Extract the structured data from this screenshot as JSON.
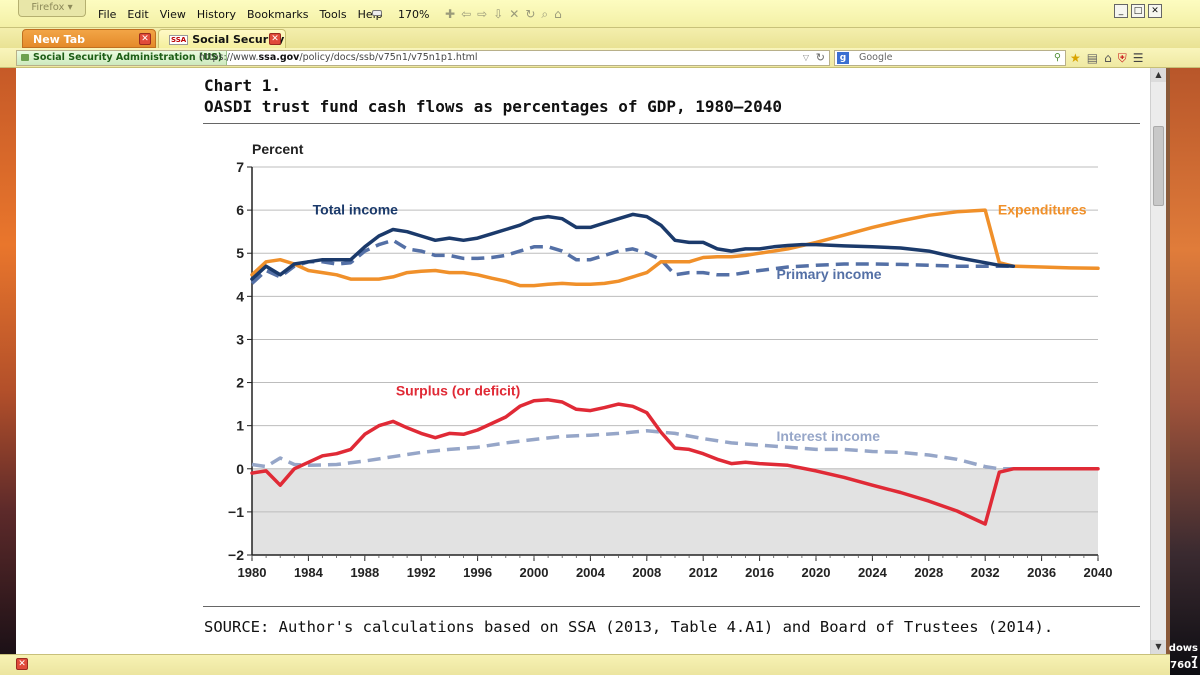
{
  "browser": {
    "app_name": "Firefox",
    "menu": [
      "File",
      "Edit",
      "View",
      "History",
      "Bookmarks",
      "Tools",
      "Help"
    ],
    "zoom": "170%",
    "tabs": [
      {
        "label": "New Tab",
        "active": false
      },
      {
        "label": "Social Security ...",
        "active": true,
        "favicon": "SSA"
      }
    ],
    "identity": "Social Security Administration (US)",
    "url_prefix": "https://www.",
    "url_domain": "ssa.gov",
    "url_path": "/policy/docs/ssb/v75n1/v75n1p1.html",
    "search_placeholder": "Google",
    "search_engine_letter": "g"
  },
  "page": {
    "chart_number": "Chart 1.",
    "chart_title": "OASDI trust fund cash flows as percentages of GDP, 1980–2040",
    "source": "SOURCE: Author's calculations based on SSA (2013, Table 4.A1) and Board of Trustees (2014)."
  },
  "os": {
    "line1": "dows 7",
    "line2": "7601"
  },
  "colors": {
    "total_income": "#1b3a6b",
    "primary_income": "#5470a6",
    "expenditures": "#f0902a",
    "surplus": "#e02a36",
    "interest_income": "#96a6c8",
    "negative_band": "#e2e2e2"
  },
  "chart_data": {
    "type": "line",
    "title": "",
    "ylabel": "Percent",
    "xlabel": "",
    "ylim": [
      -2,
      7
    ],
    "xlim": [
      1980,
      2040
    ],
    "yticks": [
      -2,
      -1,
      0,
      1,
      2,
      3,
      4,
      5,
      6,
      7
    ],
    "ytick_labels": [
      "−2",
      "−1",
      "0",
      "1",
      "2",
      "3",
      "4",
      "5",
      "6",
      "7"
    ],
    "xticks": [
      1980,
      1984,
      1988,
      1992,
      1996,
      2000,
      2004,
      2008,
      2012,
      2016,
      2020,
      2024,
      2028,
      2032,
      2036,
      2040
    ],
    "xtick_labels": [
      "1980",
      "1984",
      "1988",
      "1992",
      "1996",
      "2000",
      "2004",
      "2008",
      "2012",
      "2016",
      "2020",
      "2024",
      "2028",
      "2032",
      "2036",
      "2040"
    ],
    "shaded_region": {
      "from": -2,
      "to": 0
    },
    "series": [
      {
        "name": "Total income",
        "style": "solid",
        "color": "#1b3a6b",
        "x": [
          1980,
          1981,
          1982,
          1983,
          1984,
          1985,
          1986,
          1987,
          1988,
          1989,
          1990,
          1991,
          1992,
          1993,
          1994,
          1995,
          1996,
          1997,
          1998,
          1999,
          2000,
          2001,
          2002,
          2003,
          2004,
          2005,
          2006,
          2007,
          2008,
          2009,
          2010,
          2011,
          2012,
          2013,
          2014,
          2015,
          2016,
          2017,
          2018,
          2019,
          2020,
          2022,
          2024,
          2026,
          2028,
          2030,
          2032,
          2033,
          2034
        ],
        "values": [
          4.4,
          4.7,
          4.5,
          4.75,
          4.8,
          4.85,
          4.85,
          4.85,
          5.15,
          5.4,
          5.55,
          5.5,
          5.4,
          5.3,
          5.35,
          5.3,
          5.35,
          5.45,
          5.55,
          5.65,
          5.8,
          5.85,
          5.8,
          5.6,
          5.6,
          5.7,
          5.8,
          5.9,
          5.85,
          5.65,
          5.3,
          5.25,
          5.25,
          5.1,
          5.05,
          5.1,
          5.1,
          5.15,
          5.18,
          5.2,
          5.2,
          5.17,
          5.15,
          5.12,
          5.05,
          4.9,
          4.78,
          4.72,
          4.7
        ]
      },
      {
        "name": "Primary income",
        "style": "dashed",
        "color": "#5470a6",
        "x": [
          1980,
          1981,
          1982,
          1983,
          1984,
          1985,
          1986,
          1987,
          1988,
          1989,
          1990,
          1991,
          1992,
          1993,
          1994,
          1995,
          1996,
          1997,
          1998,
          1999,
          2000,
          2001,
          2002,
          2003,
          2004,
          2005,
          2006,
          2007,
          2008,
          2009,
          2010,
          2011,
          2012,
          2013,
          2014,
          2016,
          2018,
          2020,
          2022,
          2024,
          2026,
          2028,
          2030,
          2032,
          2034
        ],
        "values": [
          4.3,
          4.6,
          4.45,
          4.7,
          4.8,
          4.8,
          4.75,
          4.78,
          5.05,
          5.2,
          5.3,
          5.1,
          5.05,
          4.95,
          4.95,
          4.88,
          4.88,
          4.9,
          4.95,
          5.05,
          5.15,
          5.15,
          5.05,
          4.85,
          4.85,
          4.95,
          5.05,
          5.1,
          5.0,
          4.85,
          4.5,
          4.55,
          4.55,
          4.5,
          4.5,
          4.6,
          4.68,
          4.72,
          4.75,
          4.75,
          4.74,
          4.72,
          4.7,
          4.7,
          4.7
        ]
      },
      {
        "name": "Expenditures",
        "style": "solid",
        "color": "#f0902a",
        "x": [
          1980,
          1981,
          1982,
          1983,
          1984,
          1985,
          1986,
          1987,
          1988,
          1989,
          1990,
          1991,
          1992,
          1993,
          1994,
          1995,
          1996,
          1997,
          1998,
          1999,
          2000,
          2001,
          2002,
          2003,
          2004,
          2005,
          2006,
          2007,
          2008,
          2009,
          2010,
          2011,
          2012,
          2013,
          2014,
          2015,
          2016,
          2018,
          2020,
          2022,
          2024,
          2026,
          2028,
          2030,
          2032,
          2033,
          2034,
          2036,
          2038,
          2040
        ],
        "values": [
          4.5,
          4.8,
          4.85,
          4.75,
          4.6,
          4.55,
          4.5,
          4.4,
          4.4,
          4.4,
          4.45,
          4.55,
          4.58,
          4.6,
          4.55,
          4.55,
          4.5,
          4.42,
          4.35,
          4.25,
          4.25,
          4.28,
          4.3,
          4.28,
          4.28,
          4.3,
          4.35,
          4.45,
          4.55,
          4.8,
          4.8,
          4.8,
          4.9,
          4.92,
          4.92,
          4.95,
          5.0,
          5.1,
          5.25,
          5.42,
          5.6,
          5.75,
          5.88,
          5.96,
          6.0,
          4.78,
          4.7,
          4.68,
          4.66,
          4.65
        ]
      },
      {
        "name": "Surplus (or deficit)",
        "style": "solid",
        "color": "#e02a36",
        "x": [
          1980,
          1981,
          1982,
          1983,
          1984,
          1985,
          1986,
          1987,
          1988,
          1989,
          1990,
          1991,
          1992,
          1993,
          1994,
          1995,
          1996,
          1997,
          1998,
          1999,
          2000,
          2001,
          2002,
          2003,
          2004,
          2005,
          2006,
          2007,
          2008,
          2009,
          2010,
          2011,
          2012,
          2013,
          2014,
          2015,
          2016,
          2018,
          2020,
          2022,
          2024,
          2026,
          2028,
          2030,
          2032,
          2033,
          2034,
          2036,
          2040
        ],
        "values": [
          -0.1,
          -0.05,
          -0.38,
          0.0,
          0.15,
          0.3,
          0.35,
          0.45,
          0.8,
          1.0,
          1.1,
          0.95,
          0.82,
          0.72,
          0.82,
          0.8,
          0.9,
          1.05,
          1.2,
          1.45,
          1.58,
          1.6,
          1.55,
          1.38,
          1.35,
          1.42,
          1.5,
          1.45,
          1.3,
          0.85,
          0.48,
          0.45,
          0.35,
          0.22,
          0.12,
          0.15,
          0.12,
          0.08,
          -0.05,
          -0.2,
          -0.38,
          -0.55,
          -0.75,
          -0.98,
          -1.28,
          -0.08,
          0.0,
          0.0,
          0.0
        ]
      },
      {
        "name": "Interest income",
        "style": "dashed",
        "color": "#96a6c8",
        "x": [
          1980,
          1981,
          1982,
          1983,
          1984,
          1986,
          1988,
          1990,
          1992,
          1994,
          1996,
          1998,
          2000,
          2002,
          2004,
          2006,
          2008,
          2010,
          2012,
          2014,
          2016,
          2018,
          2020,
          2022,
          2024,
          2026,
          2028,
          2030,
          2032,
          2033,
          2034
        ],
        "values": [
          0.1,
          0.05,
          0.25,
          0.1,
          0.08,
          0.1,
          0.18,
          0.28,
          0.38,
          0.45,
          0.5,
          0.6,
          0.68,
          0.75,
          0.78,
          0.82,
          0.88,
          0.82,
          0.7,
          0.6,
          0.55,
          0.5,
          0.45,
          0.45,
          0.4,
          0.38,
          0.32,
          0.22,
          0.05,
          0.0,
          0.0
        ]
      }
    ],
    "annotations": [
      {
        "text": "Total income",
        "series": "Total income",
        "x": 1984.3,
        "y": 5.9
      },
      {
        "text": "Expenditures",
        "series": "Expenditures",
        "x": 2032.9,
        "y": 5.9
      },
      {
        "text": "Primary income",
        "series": "Primary income",
        "x": 2017.2,
        "y": 4.4
      },
      {
        "text": "Surplus (or deficit)",
        "series": "Surplus (or deficit)",
        "x": 1990.2,
        "y": 1.7
      },
      {
        "text": "Interest income",
        "series": "Interest income",
        "x": 2017.2,
        "y": 0.65
      }
    ]
  }
}
